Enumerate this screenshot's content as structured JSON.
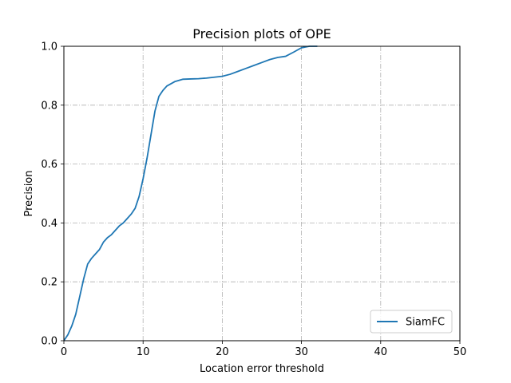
{
  "chart_data": {
    "type": "line",
    "title": "Precision plots of OPE",
    "xlabel": "Location error threshold",
    "ylabel": "Precision",
    "xlim": [
      0,
      50
    ],
    "ylim": [
      0,
      1
    ],
    "xticks": [
      0,
      10,
      20,
      30,
      40,
      50
    ],
    "yticks": [
      0.0,
      0.2,
      0.4,
      0.6,
      0.8,
      1.0
    ],
    "xtick_labels": [
      "0",
      "10",
      "20",
      "30",
      "40",
      "50"
    ],
    "ytick_labels": [
      "0.0",
      "0.2",
      "0.4",
      "0.6",
      "0.8",
      "1.0"
    ],
    "grid": true,
    "grid_style": "dashdot",
    "legend_position": "lower-right",
    "series": [
      {
        "name": "SiamFC",
        "color": "#1f77b4",
        "x": [
          0,
          0.5,
          1,
          1.5,
          2,
          2.5,
          3,
          3.5,
          4,
          4.5,
          5,
          5.5,
          6,
          6.5,
          7,
          7.5,
          8,
          8.5,
          9,
          9.5,
          10,
          10.5,
          11,
          11.5,
          12,
          12.5,
          13,
          14,
          15,
          16,
          17,
          18,
          19,
          20,
          21,
          22,
          23,
          24,
          25,
          26,
          27,
          28,
          29,
          30,
          31,
          32
        ],
        "y": [
          0,
          0.02,
          0.05,
          0.09,
          0.15,
          0.21,
          0.26,
          0.28,
          0.295,
          0.31,
          0.335,
          0.35,
          0.36,
          0.375,
          0.39,
          0.4,
          0.415,
          0.43,
          0.45,
          0.49,
          0.55,
          0.62,
          0.7,
          0.78,
          0.83,
          0.85,
          0.865,
          0.88,
          0.888,
          0.889,
          0.89,
          0.892,
          0.895,
          0.898,
          0.905,
          0.915,
          0.925,
          0.935,
          0.945,
          0.955,
          0.962,
          0.966,
          0.98,
          0.995,
          1.0,
          1.0
        ]
      }
    ]
  }
}
